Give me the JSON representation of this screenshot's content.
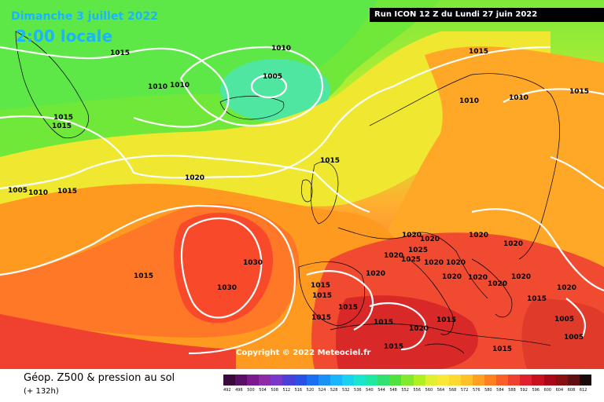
{
  "map": {
    "title_date": "Dimanche 3 juillet 2022",
    "title_time": "2:00 locale",
    "run_info": "Run ICON 12 Z du Lundi 27 juin 2022",
    "copyright": "Copyright © 2022 Meteociel.fr",
    "isobar_labels": [
      "1015",
      "1010",
      "1005",
      "1010",
      "1010",
      "1015",
      "1015",
      "1015",
      "1005",
      "1010",
      "1015",
      "1020",
      "1015",
      "1010",
      "1010",
      "1015",
      "1020",
      "1020",
      "1020",
      "1020",
      "1025",
      "1025",
      "1020",
      "1030",
      "1030",
      "1020",
      "1020",
      "1020",
      "1020",
      "1020",
      "1020",
      "1015",
      "1015",
      "1015",
      "1015",
      "1020",
      "1015",
      "1015",
      "1020",
      "1015",
      "1015",
      "1005",
      "1005",
      "1020",
      "1015",
      "1015"
    ]
  },
  "legend": {
    "title": "Géop. Z500 & pression au sol",
    "subtitle": "(+ 132h)",
    "scale_values": [
      "492",
      "496",
      "500",
      "504",
      "508",
      "512",
      "516",
      "520",
      "524",
      "528",
      "532",
      "536",
      "540",
      "544",
      "548",
      "552",
      "556",
      "560",
      "564",
      "568",
      "572",
      "576",
      "580",
      "584",
      "588",
      "592",
      "596",
      "600",
      "604",
      "608",
      "612"
    ],
    "scale_colors": [
      "#3b0a3d",
      "#5a1066",
      "#7a1a8c",
      "#8e2aa8",
      "#7a38c8",
      "#4a40d8",
      "#2a50e6",
      "#1a70f0",
      "#1a92f5",
      "#19b6ff",
      "#1ad2f0",
      "#1ae6d0",
      "#20e8a0",
      "#30e070",
      "#50e040",
      "#80ea30",
      "#b0f020",
      "#e0f030",
      "#f8e838",
      "#ffd830",
      "#ffc028",
      "#ffa020",
      "#ff8020",
      "#f86028",
      "#f04030",
      "#e02030",
      "#c81020",
      "#a80818",
      "#881010",
      "#601010",
      "#1a0a0a"
    ]
  }
}
